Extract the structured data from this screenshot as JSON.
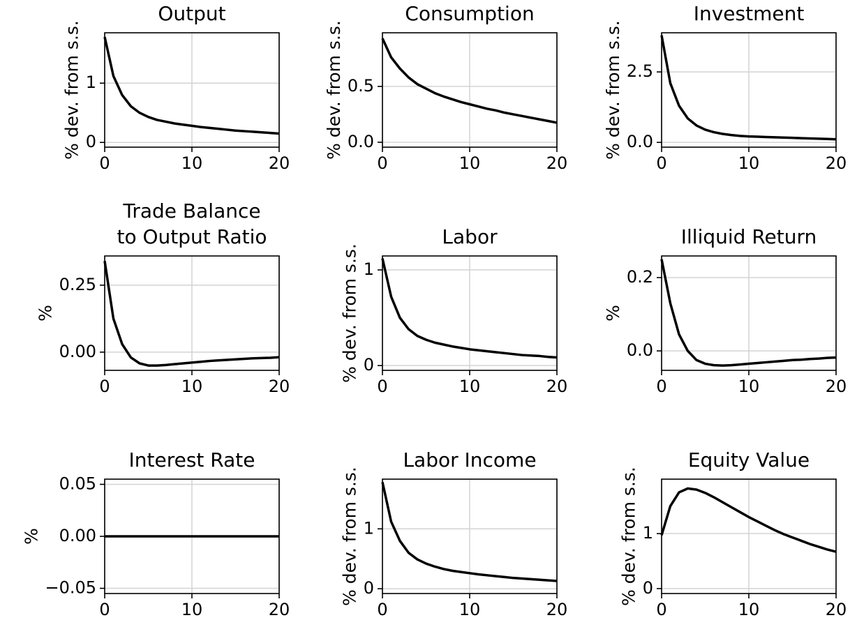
{
  "chart_data": [
    {
      "type": "line",
      "title": "Output",
      "ylabel": "% dev. from s.s.",
      "color": "#000000",
      "grid": true,
      "x": [
        0,
        1,
        2,
        3,
        4,
        5,
        6,
        7,
        8,
        9,
        10,
        11,
        12,
        13,
        14,
        15,
        16,
        17,
        18,
        19,
        20
      ],
      "values": [
        1.78,
        1.12,
        0.8,
        0.61,
        0.5,
        0.43,
        0.38,
        0.35,
        0.32,
        0.3,
        0.28,
        0.26,
        0.245,
        0.23,
        0.215,
        0.2,
        0.19,
        0.18,
        0.17,
        0.16,
        0.15
      ],
      "xlim": [
        0,
        20
      ],
      "xticks": [
        0,
        10,
        20
      ],
      "ylim": [
        -0.08,
        1.85
      ],
      "yticks": [
        0,
        1
      ]
    },
    {
      "type": "line",
      "title": "Consumption",
      "ylabel": "% dev. from s.s.",
      "color": "#000000",
      "grid": true,
      "x": [
        0,
        1,
        2,
        3,
        4,
        5,
        6,
        7,
        8,
        9,
        10,
        11,
        12,
        13,
        14,
        15,
        16,
        17,
        18,
        19,
        20
      ],
      "values": [
        0.93,
        0.76,
        0.66,
        0.58,
        0.52,
        0.48,
        0.44,
        0.41,
        0.385,
        0.36,
        0.34,
        0.32,
        0.3,
        0.285,
        0.265,
        0.25,
        0.235,
        0.22,
        0.205,
        0.19,
        0.175
      ],
      "xlim": [
        0,
        20
      ],
      "xticks": [
        0,
        10,
        20
      ],
      "ylim": [
        -0.044,
        0.98
      ],
      "yticks": [
        {
          "value": 0,
          "label": "0.0"
        },
        0.5
      ]
    },
    {
      "type": "line",
      "title": "Investment",
      "ylabel": "% dev. from s.s.",
      "color": "#000000",
      "grid": true,
      "x": [
        0,
        1,
        2,
        3,
        4,
        5,
        6,
        7,
        8,
        9,
        10,
        11,
        12,
        13,
        14,
        15,
        16,
        17,
        18,
        19,
        20
      ],
      "values": [
        3.8,
        2.1,
        1.3,
        0.85,
        0.6,
        0.45,
        0.36,
        0.3,
        0.26,
        0.23,
        0.21,
        0.2,
        0.19,
        0.18,
        0.17,
        0.16,
        0.15,
        0.14,
        0.13,
        0.12,
        0.11
      ],
      "xlim": [
        0,
        20
      ],
      "xticks": [
        0,
        10,
        20
      ],
      "ylim": [
        -0.17,
        3.89
      ],
      "yticks": [
        {
          "value": 0,
          "label": "0.0"
        },
        2.5
      ]
    },
    {
      "type": "line",
      "title": [
        "Trade Balance",
        "to Output Ratio"
      ],
      "ylabel": "%",
      "color": "#000000",
      "grid": true,
      "x": [
        0,
        1,
        2,
        3,
        4,
        5,
        6,
        7,
        8,
        9,
        10,
        11,
        12,
        13,
        14,
        15,
        16,
        17,
        18,
        19,
        20
      ],
      "values": [
        0.34,
        0.125,
        0.03,
        -0.02,
        -0.042,
        -0.05,
        -0.05,
        -0.048,
        -0.045,
        -0.042,
        -0.039,
        -0.036,
        -0.033,
        -0.031,
        -0.029,
        -0.027,
        -0.025,
        -0.023,
        -0.022,
        -0.021,
        -0.019
      ],
      "xlim": [
        0,
        20
      ],
      "xticks": [
        0,
        10,
        20
      ],
      "ylim": [
        -0.068,
        0.359
      ],
      "yticks": [
        {
          "value": 0,
          "label": "0.00"
        },
        0.25
      ]
    },
    {
      "type": "line",
      "title": "Labor",
      "ylabel": "% dev. from s.s.",
      "color": "#000000",
      "grid": true,
      "x": [
        0,
        1,
        2,
        3,
        4,
        5,
        6,
        7,
        8,
        9,
        10,
        11,
        12,
        13,
        14,
        15,
        16,
        17,
        18,
        19,
        20
      ],
      "values": [
        1.12,
        0.72,
        0.5,
        0.38,
        0.31,
        0.27,
        0.24,
        0.22,
        0.2,
        0.185,
        0.17,
        0.16,
        0.15,
        0.14,
        0.13,
        0.12,
        0.11,
        0.105,
        0.1,
        0.09,
        0.085
      ],
      "xlim": [
        0,
        20
      ],
      "xticks": [
        0,
        10,
        20
      ],
      "ylim": [
        -0.05,
        1.146
      ],
      "yticks": [
        0,
        1
      ]
    },
    {
      "type": "line",
      "title": "Illiquid Return",
      "ylabel": "%",
      "color": "#000000",
      "grid": true,
      "x": [
        0,
        1,
        2,
        3,
        4,
        5,
        6,
        7,
        8,
        9,
        10,
        11,
        12,
        13,
        14,
        15,
        16,
        17,
        18,
        19,
        20
      ],
      "values": [
        0.25,
        0.13,
        0.045,
        0.0,
        -0.025,
        -0.035,
        -0.039,
        -0.04,
        -0.039,
        -0.037,
        -0.035,
        -0.033,
        -0.031,
        -0.029,
        -0.027,
        -0.025,
        -0.024,
        -0.022,
        -0.021,
        -0.019,
        -0.018
      ],
      "xlim": [
        0,
        20
      ],
      "xticks": [
        0,
        10,
        20
      ],
      "ylim": [
        -0.053,
        0.259
      ],
      "yticks": [
        {
          "value": 0,
          "label": "0.0"
        },
        0.2
      ]
    },
    {
      "type": "line",
      "title": "Interest Rate",
      "ylabel": "%",
      "color": "#000000",
      "grid": true,
      "x": [
        0,
        1,
        2,
        3,
        4,
        5,
        6,
        7,
        8,
        9,
        10,
        11,
        12,
        13,
        14,
        15,
        16,
        17,
        18,
        19,
        20
      ],
      "values": [
        0,
        0,
        0,
        0,
        0,
        0,
        0,
        0,
        0,
        0,
        0,
        0,
        0,
        0,
        0,
        0,
        0,
        0,
        0,
        0,
        0
      ],
      "xlim": [
        0,
        20
      ],
      "xticks": [
        0,
        10,
        20
      ],
      "ylim": [
        -0.055,
        0.055
      ],
      "yticks": [
        {
          "value": -0.05,
          "label": "−0.05"
        },
        {
          "value": 0,
          "label": "0.00"
        },
        0.05
      ]
    },
    {
      "type": "line",
      "title": "Labor Income",
      "ylabel": "% dev. from s.s.",
      "color": "#000000",
      "grid": true,
      "x": [
        0,
        1,
        2,
        3,
        4,
        5,
        6,
        7,
        8,
        9,
        10,
        11,
        12,
        13,
        14,
        15,
        16,
        17,
        18,
        19,
        20
      ],
      "values": [
        1.78,
        1.12,
        0.8,
        0.6,
        0.49,
        0.42,
        0.37,
        0.33,
        0.3,
        0.28,
        0.26,
        0.24,
        0.225,
        0.21,
        0.195,
        0.18,
        0.17,
        0.16,
        0.15,
        0.14,
        0.13
      ],
      "xlim": [
        0,
        20
      ],
      "xticks": [
        0,
        10,
        20
      ],
      "ylim": [
        -0.08,
        1.83
      ],
      "yticks": [
        0,
        1
      ]
    },
    {
      "type": "line",
      "title": "Equity Value",
      "ylabel": "% dev. from s.s.",
      "color": "#000000",
      "grid": true,
      "x": [
        0,
        1,
        2,
        3,
        4,
        5,
        6,
        7,
        8,
        9,
        10,
        11,
        12,
        13,
        14,
        15,
        16,
        17,
        18,
        19,
        20
      ],
      "values": [
        0.97,
        1.5,
        1.75,
        1.82,
        1.8,
        1.74,
        1.66,
        1.57,
        1.48,
        1.39,
        1.3,
        1.22,
        1.14,
        1.06,
        0.99,
        0.93,
        0.87,
        0.81,
        0.76,
        0.71,
        0.67
      ],
      "xlim": [
        0,
        20
      ],
      "xticks": [
        0,
        10,
        20
      ],
      "ylim": [
        -0.09,
        1.99
      ],
      "yticks": [
        0,
        1
      ]
    }
  ]
}
